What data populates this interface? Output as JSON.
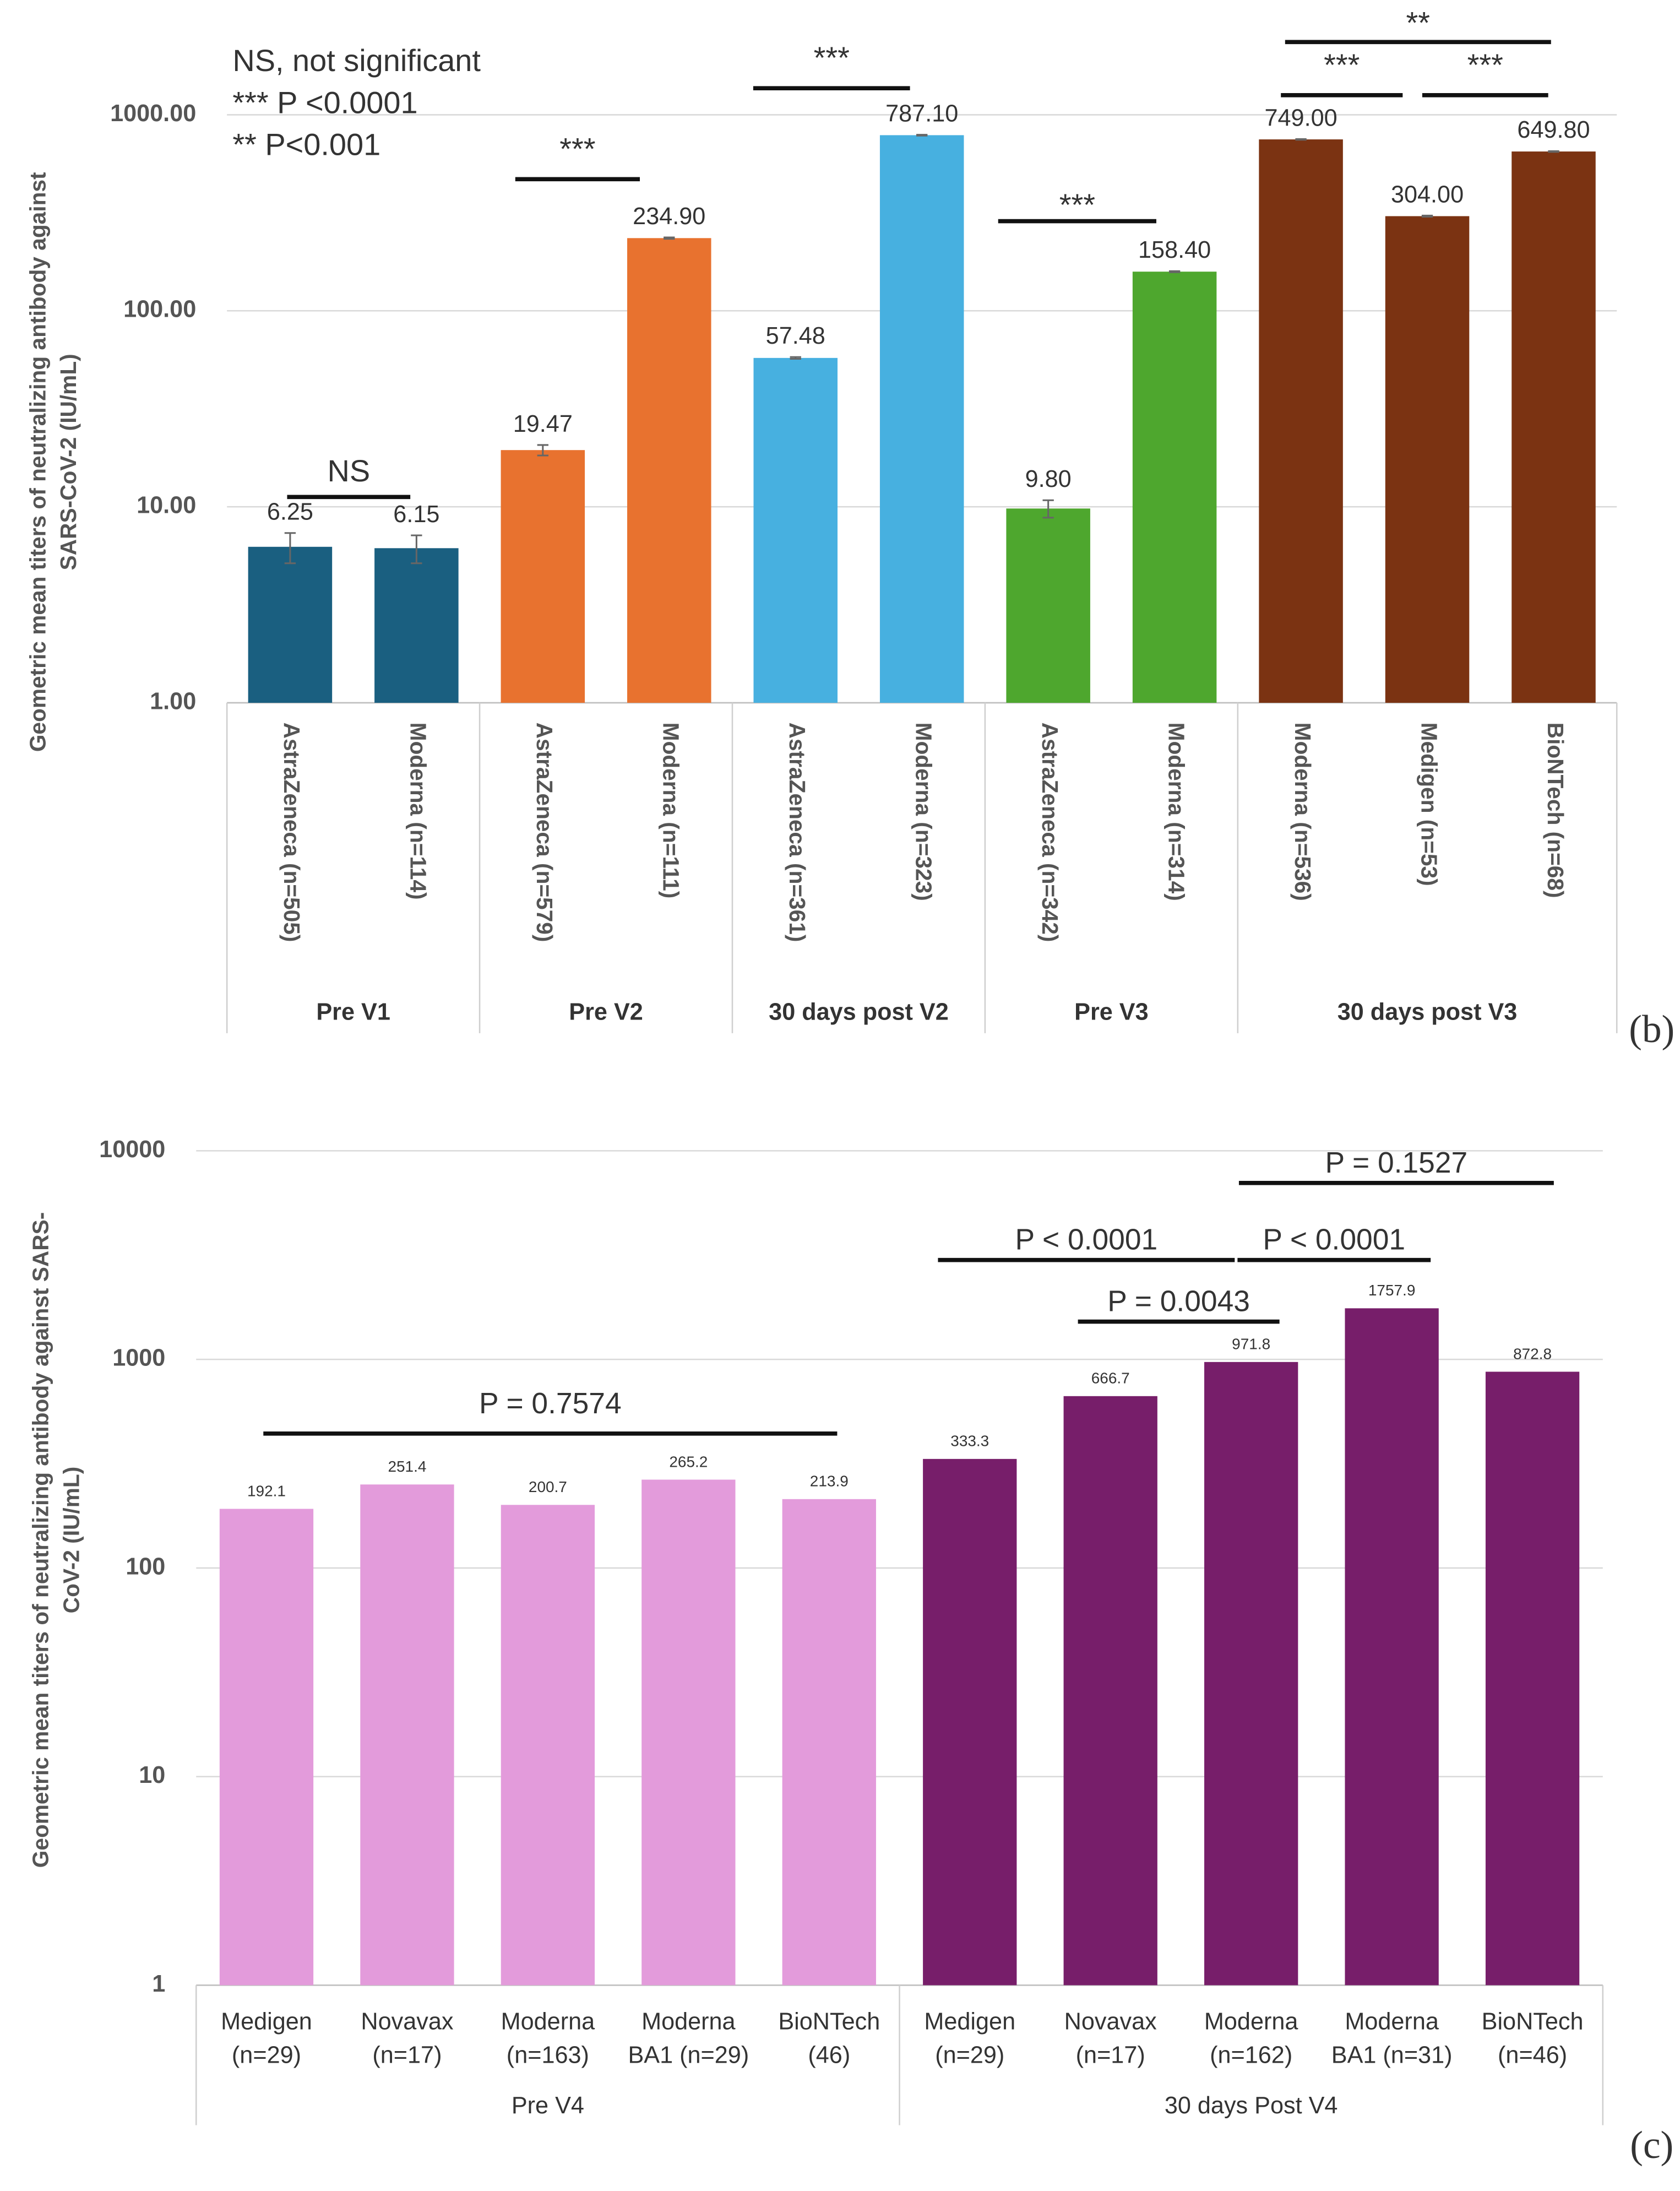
{
  "chart_data": [
    {
      "type": "bar",
      "panel": "(b)",
      "log_scale": true,
      "grid": true,
      "notes": [
        "NS, not significant",
        "*** P <0.0001",
        "** P<0.001"
      ],
      "y_label": [
        "Geometric mean titers of neutralizing antibody against",
        "SARS-CoV-2 (IU/mL)"
      ],
      "categories": [
        "AstraZeneca (n=505)",
        "Moderna (n=114)",
        "AstraZeneca (n=579)",
        "Moderna (n=111)",
        "AstraZeneca (n=361)",
        "Moderna (n=323)",
        "AstraZeneca (n=342)",
        "Moderna (n=314)",
        "Moderna (n=536)",
        "Medigen (n=53)",
        "BioNTech (n=68)"
      ],
      "groups": [
        "Pre V1",
        "Pre V2",
        "30 days post V2",
        "Pre V3",
        "30 days post V3"
      ],
      "values": [
        6.25,
        6.15,
        19.47,
        234.9,
        57.48,
        787.1,
        9.8,
        158.4,
        749.0,
        304.0,
        649.8
      ],
      "value_labels": [
        "6.25",
        "6.15",
        "19.47",
        "234.90",
        "57.48",
        "787.10",
        "9.80",
        "158.40",
        "749.00",
        "304.00",
        "649.80"
      ],
      "errors": [
        1.1,
        1.0,
        1.2,
        2,
        0.6,
        4,
        1.0,
        1,
        3,
        2,
        3
      ],
      "colors": [
        "#1a5f80",
        "#1a5f80",
        "#e8722f",
        "#e8722f",
        "#47b0e0",
        "#47b0e0",
        "#4ea72e",
        "#4ea72e",
        "#7b3312",
        "#7b3312",
        "#7b3312"
      ],
      "ylim": [
        1,
        1000
      ],
      "yticks": [
        {
          "value": 1,
          "label": "1.00"
        },
        {
          "value": 10,
          "label": "10.00"
        },
        {
          "value": 100,
          "label": "100.00"
        },
        {
          "value": 1000,
          "label": "1000.00"
        }
      ],
      "annotations": [
        "NS",
        "***",
        "***",
        "***",
        "***",
        "***",
        "**"
      ]
    },
    {
      "type": "bar",
      "panel": "(c)",
      "log_scale": true,
      "grid": true,
      "y_label": [
        "Geometric mean titers of neutralizing antibody against SARS-",
        "CoV-2 (IU/mL)"
      ],
      "categories": [
        [
          "Medigen",
          "(n=29)"
        ],
        [
          "Novavax",
          "(n=17)"
        ],
        [
          "Moderna",
          "(n=163)"
        ],
        [
          "Moderna",
          "BA1 (n=29)"
        ],
        [
          "BioNTech",
          "(46)"
        ],
        [
          "Medigen",
          "(n=29)"
        ],
        [
          "Novavax",
          "(n=17)"
        ],
        [
          "Moderna",
          "(n=162)"
        ],
        [
          "Moderna",
          "BA1 (n=31)"
        ],
        [
          "BioNTech",
          "(n=46)"
        ]
      ],
      "groups": [
        "Pre V4",
        "30 days Post V4"
      ],
      "values": [
        192.1,
        251.4,
        200.7,
        265.2,
        213.9,
        333.3,
        666.7,
        971.8,
        1757.9,
        872.8
      ],
      "colors": [
        "#e39bdb",
        "#e39bdb",
        "#e39bdb",
        "#e39bdb",
        "#e39bdb",
        "#771e6a",
        "#771e6a",
        "#771e6a",
        "#771e6a",
        "#771e6a"
      ],
      "ylim": [
        1,
        10000
      ],
      "yticks": [
        1,
        10,
        100,
        1000,
        10000
      ],
      "annotations": [
        "P = 0.7574",
        "P < 0.0001",
        "P = 0.0043",
        "P < 0.0001",
        "P = 0.1527"
      ]
    }
  ]
}
